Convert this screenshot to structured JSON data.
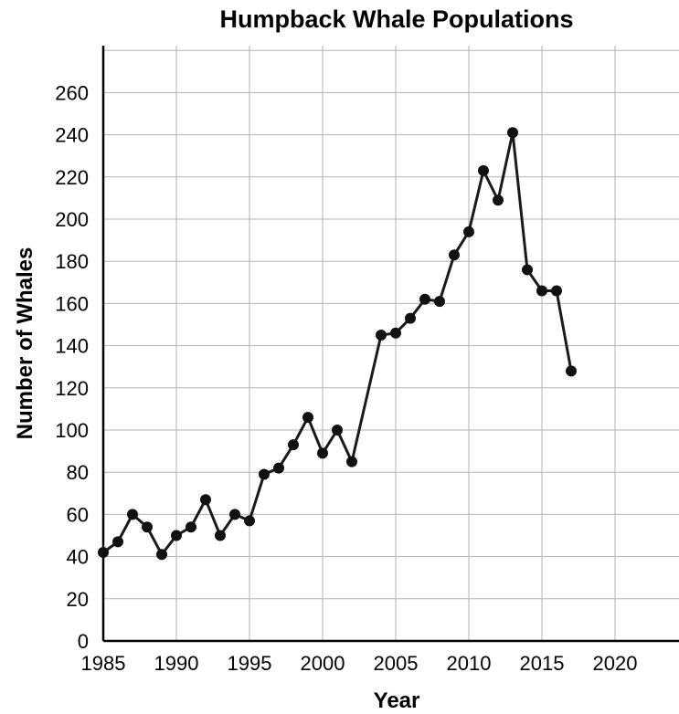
{
  "chart_data": {
    "type": "line",
    "title": "Humpback Whale Populations",
    "xlabel": "Year",
    "ylabel": "Number of Whales",
    "xlim": [
      1985,
      2024
    ],
    "ylim": [
      0,
      270
    ],
    "xticks": [
      1985,
      1990,
      1995,
      2000,
      2005,
      2010,
      2015,
      2020
    ],
    "yticks": [
      0,
      20,
      40,
      60,
      80,
      100,
      120,
      140,
      160,
      180,
      200,
      220,
      240,
      260
    ],
    "grid": true,
    "markers": true,
    "series": [
      {
        "x": [
          1985,
          1986,
          1987,
          1988,
          1989,
          1990,
          1991,
          1992,
          1993,
          1994,
          1995,
          1996,
          1997,
          1998,
          1999,
          2000,
          2001,
          2002,
          2004,
          2005,
          2006,
          2007,
          2008,
          2009,
          2010,
          2011,
          2012,
          2013,
          2014,
          2015,
          2016,
          2017
        ],
        "y": [
          42,
          47,
          60,
          54,
          41,
          50,
          54,
          67,
          50,
          60,
          57,
          79,
          82,
          93,
          106,
          89,
          100,
          85,
          145,
          146,
          153,
          162,
          161,
          183,
          194,
          223,
          209,
          241,
          176,
          166,
          166,
          128
        ]
      }
    ],
    "colors": {
      "line": "#1a1a1a",
      "marker": "#111111",
      "grid": "#b3b3b3",
      "axis": "#000000"
    }
  }
}
